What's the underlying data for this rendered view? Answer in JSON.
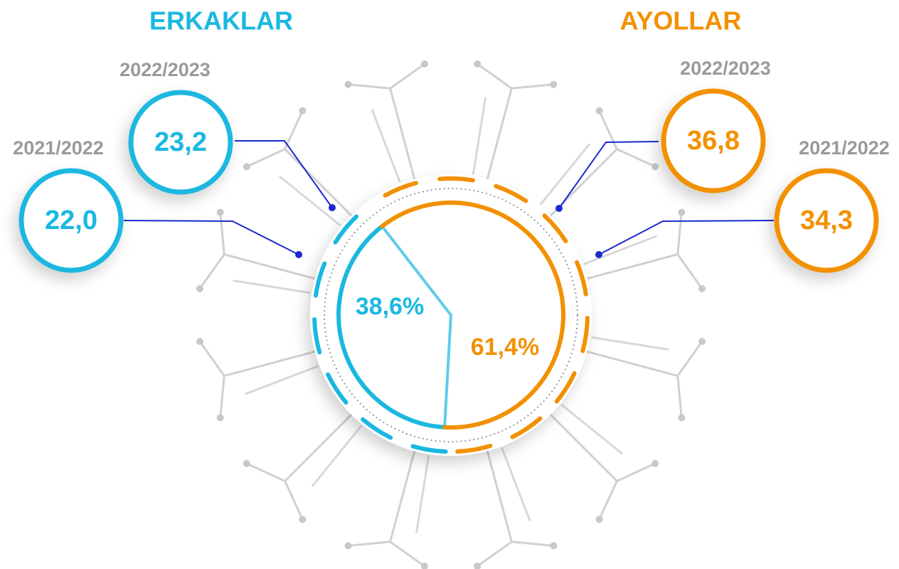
{
  "chart_data": {
    "type": "pie",
    "categories": [
      "ERKAKLAR",
      "AYOLLAR"
    ],
    "values": [
      38.6,
      61.4
    ],
    "value_labels": [
      "38,6%",
      "61,4%"
    ],
    "colors": [
      "#1ab8e0",
      "#f29100"
    ],
    "details": [
      [
        {
          "period": "2022/2023",
          "value": 23.2,
          "value_label": "23,2"
        },
        {
          "period": "2021/2022",
          "value": 22.0,
          "value_label": "22,0"
        }
      ],
      [
        {
          "period": "2022/2023",
          "value": 36.8,
          "value_label": "36,8"
        },
        {
          "period": "2021/2022",
          "value": 34.3,
          "value_label": "34,3"
        }
      ]
    ]
  }
}
